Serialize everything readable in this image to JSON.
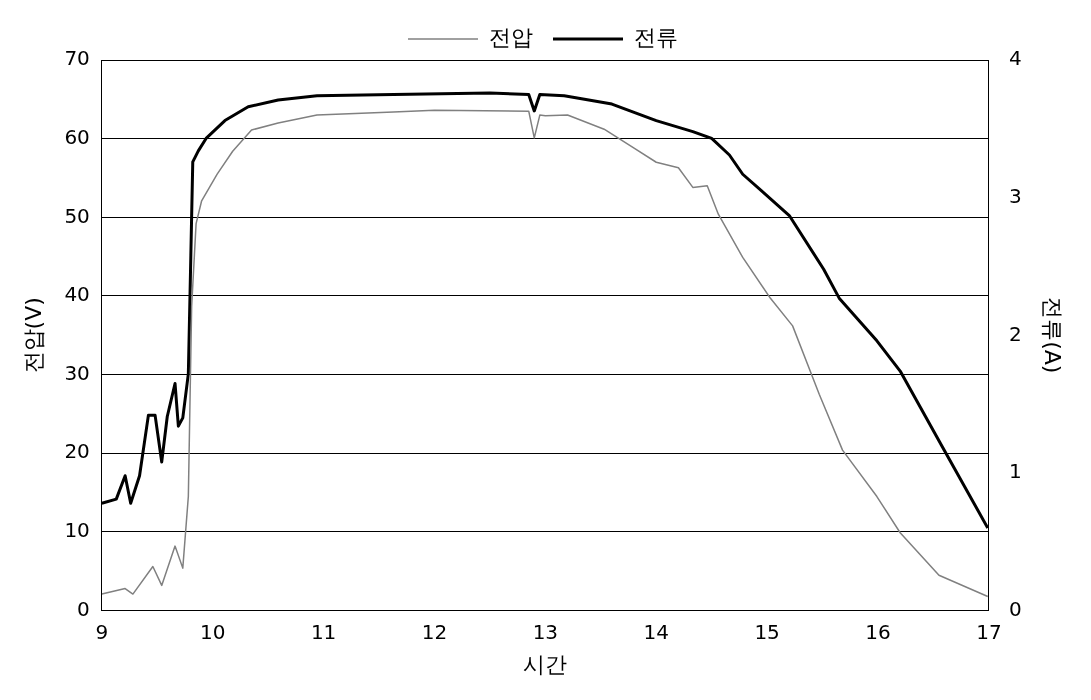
{
  "chart_data": {
    "type": "line",
    "xlabel": "시간",
    "ylabel": "전압(V)",
    "y2label": "전류(A)",
    "xlim": [
      9,
      17
    ],
    "xticks": [
      9,
      10,
      11,
      12,
      13,
      14,
      15,
      16,
      17
    ],
    "ylim": [
      0,
      70
    ],
    "yticks": [
      0,
      10,
      20,
      30,
      40,
      50,
      60,
      70
    ],
    "y2lim": [
      0,
      4
    ],
    "y2ticks": [
      0,
      1,
      2,
      3,
      4
    ],
    "grid": "y",
    "legend": "top",
    "marker": "none",
    "series": [
      {
        "name": "전압",
        "color": "#808080",
        "line_style": "solid",
        "x": [
          9.0,
          9.21,
          9.28,
          9.46,
          9.54,
          9.66,
          9.73,
          9.78,
          9.81,
          9.85,
          9.9,
          10.04,
          10.18,
          10.35,
          10.59,
          10.94,
          11.63,
          12.0,
          12.85,
          12.9,
          12.95,
          13.0,
          13.2,
          13.53,
          13.8,
          14.0,
          14.2,
          14.33,
          14.46,
          14.56,
          14.78,
          15.03,
          15.23,
          15.47,
          15.68,
          15.99,
          16.2,
          16.55,
          16.99
        ],
        "values": [
          2.1,
          2.8,
          2.1,
          5.6,
          3.2,
          8.2,
          5.4,
          14.5,
          38.7,
          49.2,
          52.1,
          55.5,
          58.4,
          61.1,
          62,
          63,
          63.4,
          63.6,
          63.5,
          60.1,
          63,
          62.9,
          63,
          61.2,
          58.8,
          57,
          56.3,
          53.8,
          54,
          50.4,
          44.9,
          39.7,
          36.2,
          27.5,
          20.4,
          14.5,
          9.9,
          4.5,
          1.8
        ]
      },
      {
        "name": "전류",
        "color": "#000000",
        "line_style": "solid",
        "axis": "y2",
        "x": [
          9.0,
          9.13,
          9.21,
          9.26,
          9.34,
          9.42,
          9.48,
          9.54,
          9.59,
          9.66,
          9.69,
          9.73,
          9.78,
          9.8,
          9.82,
          9.87,
          9.94,
          10.11,
          10.32,
          10.59,
          10.94,
          11.63,
          12.5,
          12.85,
          12.9,
          12.95,
          13.17,
          13.6,
          14.0,
          14.33,
          14.5,
          14.66,
          14.78,
          15.2,
          15.51,
          15.65,
          15.99,
          16.2,
          16.58,
          16.99
        ],
        "values": [
          0.78,
          0.81,
          0.98,
          0.78,
          0.98,
          1.42,
          1.42,
          1.08,
          1.41,
          1.65,
          1.34,
          1.4,
          1.72,
          2.48,
          3.26,
          3.34,
          3.43,
          3.56,
          3.66,
          3.71,
          3.74,
          3.75,
          3.76,
          3.75,
          3.63,
          3.75,
          3.74,
          3.68,
          3.56,
          3.48,
          3.43,
          3.31,
          3.17,
          2.87,
          2.48,
          2.27,
          1.96,
          1.74,
          1.19,
          0.6
        ]
      }
    ]
  }
}
